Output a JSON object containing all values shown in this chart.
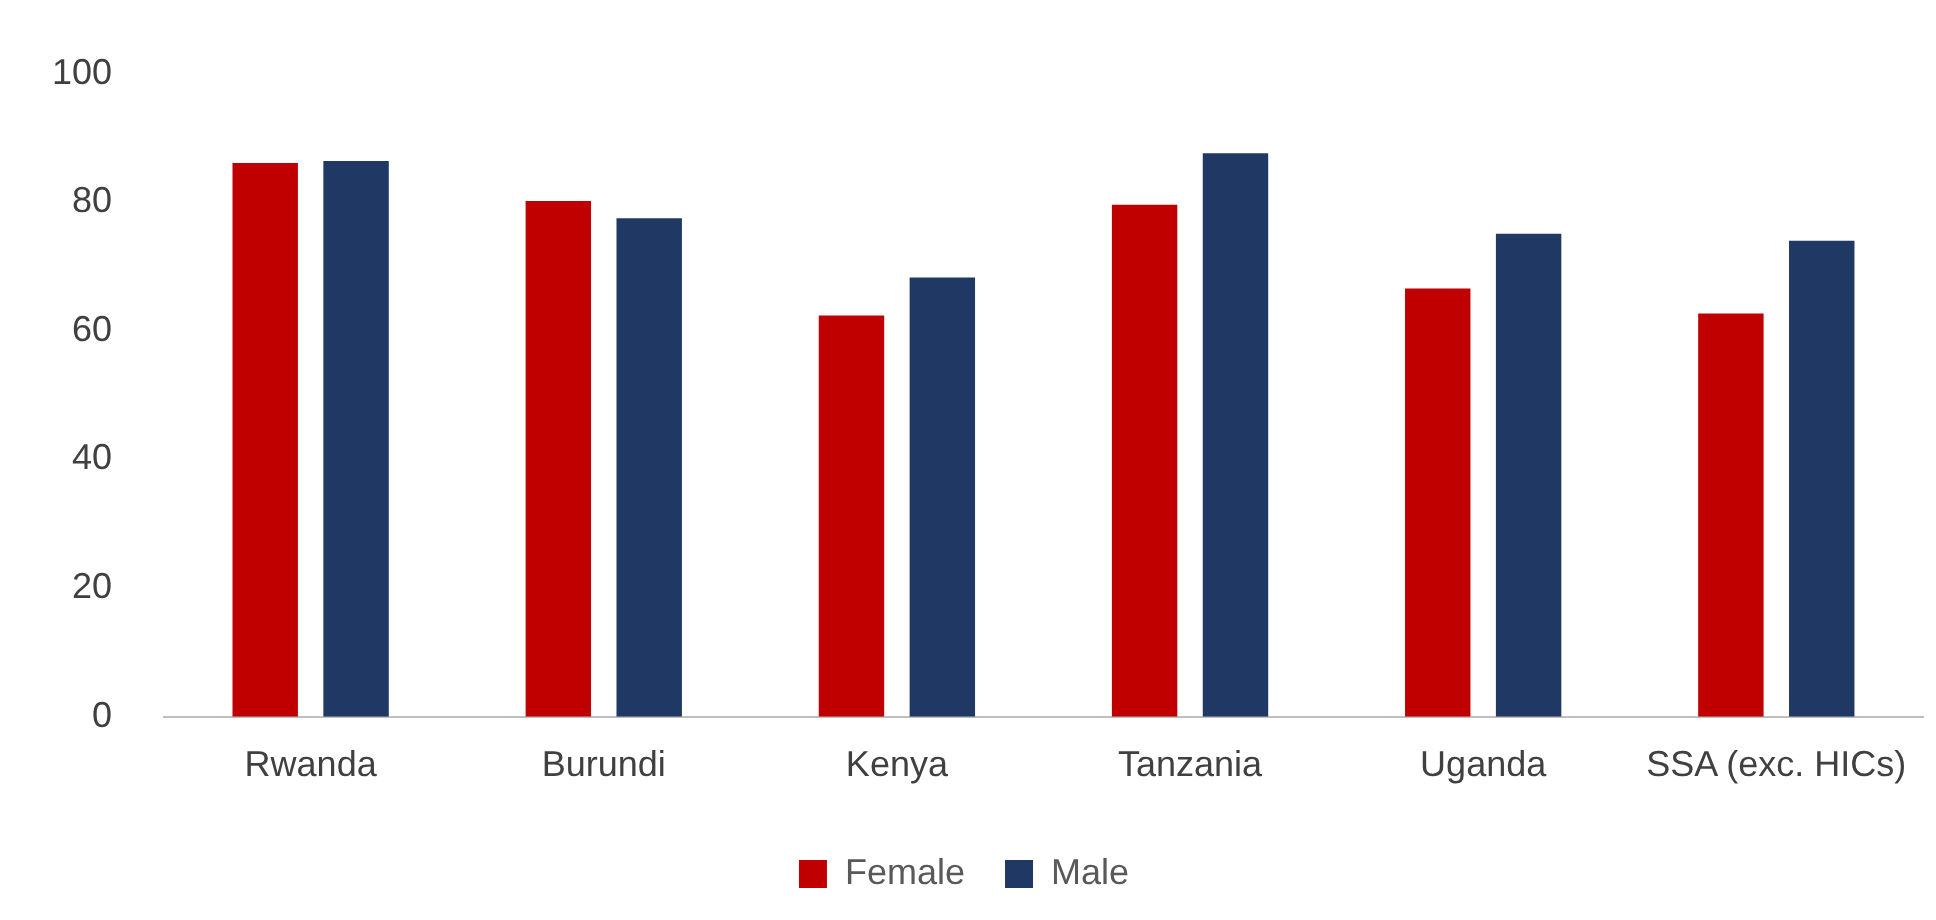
{
  "chart_data": {
    "type": "bar",
    "categories": [
      "Rwanda",
      "Burundi",
      "Kenya",
      "Tanzania",
      "Uganda",
      "SSA (exc. HICs)"
    ],
    "series": [
      {
        "name": "Female",
        "color": "#c00000",
        "values": [
          86.1,
          80.2,
          62.4,
          79.6,
          66.6,
          62.7
        ]
      },
      {
        "name": "Male",
        "color": "#1f3864",
        "values": [
          86.4,
          77.5,
          68.3,
          87.6,
          75.1,
          74.0
        ]
      }
    ],
    "ylim": [
      0,
      100
    ],
    "yticks": [
      0,
      20,
      40,
      60,
      80,
      100
    ],
    "grid": false,
    "legend": "bottom"
  }
}
